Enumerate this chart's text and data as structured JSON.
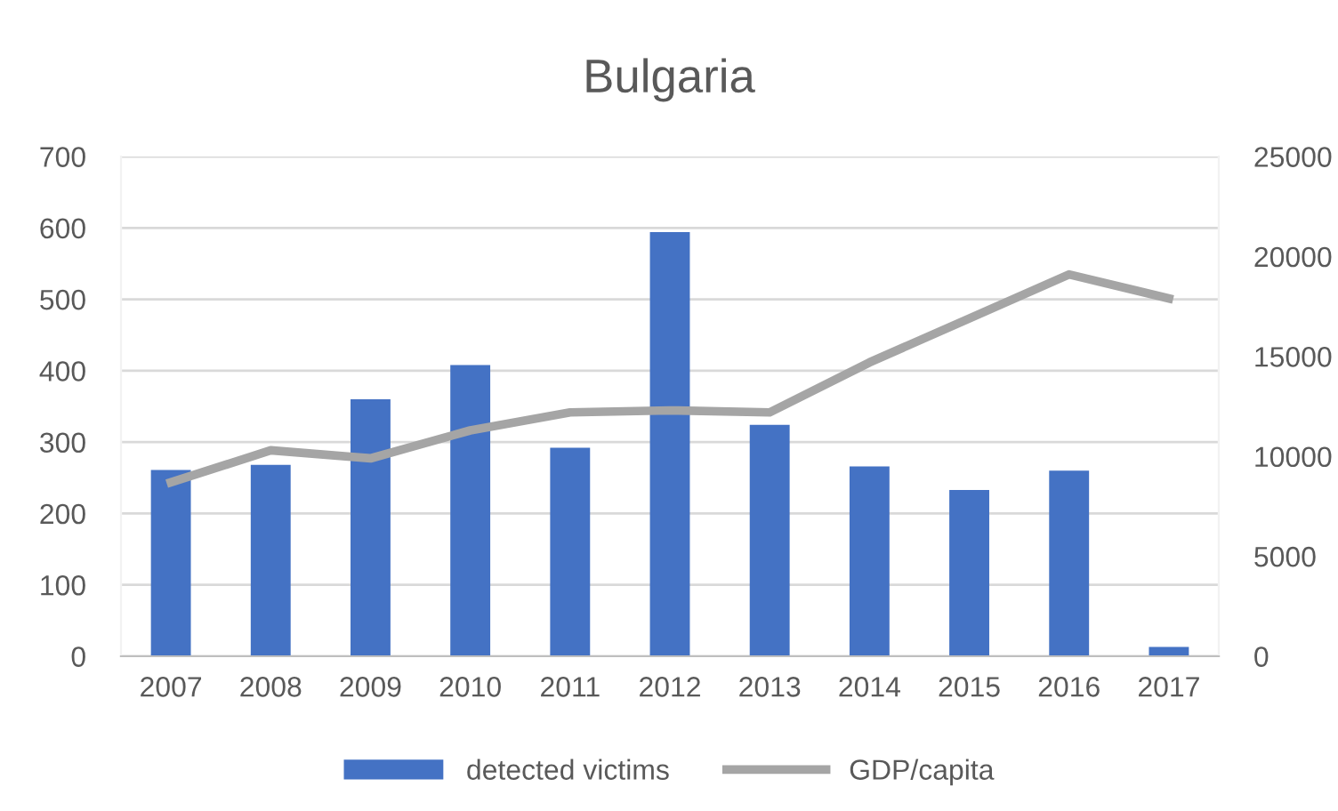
{
  "chart_data": {
    "type": "bar",
    "title": "Bulgaria",
    "categories": [
      "2007",
      "2008",
      "2009",
      "2010",
      "2011",
      "2012",
      "2013",
      "2014",
      "2015",
      "2016",
      "2017"
    ],
    "series": [
      {
        "name": "detected victims",
        "color": "#4472c4",
        "values": [
          261,
          268,
          360,
          408,
          292,
          594,
          324,
          266,
          233,
          260,
          13
        ]
      },
      {
        "name": "GDP/capita",
        "type": "line",
        "axis": "y2",
        "color": "#a5a5a5",
        "values": [
          8700,
          10300,
          9900,
          11300,
          12200,
          12300,
          12200,
          14700,
          16900,
          19100,
          17900
        ]
      }
    ],
    "ylim": [
      0,
      700
    ],
    "yticks": [
      0,
      100,
      200,
      300,
      400,
      500,
      600,
      700
    ],
    "y2lim": [
      0,
      25000
    ],
    "y2ticks": [
      0,
      5000,
      10000,
      15000,
      20000,
      25000
    ],
    "grid": "y",
    "legend": "bottom",
    "marker": "none"
  }
}
